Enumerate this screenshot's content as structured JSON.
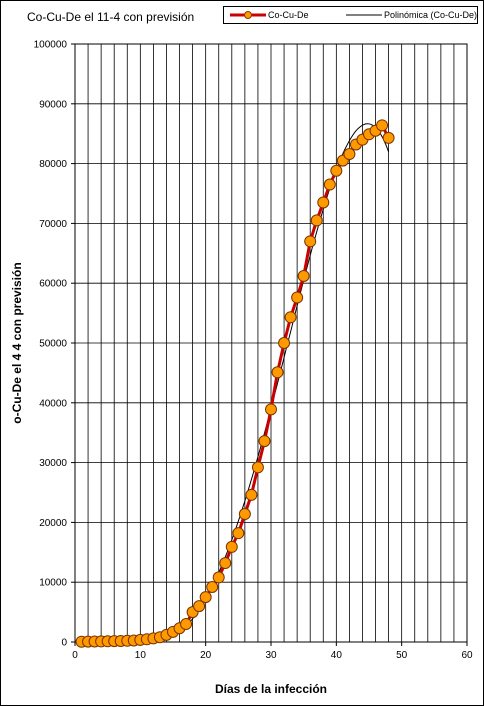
{
  "chart_data": {
    "type": "line",
    "title": "Co-Cu-De  el 11-4 con previsión",
    "xlabel": "Días de la infección",
    "ylabel": "o-Cu-De el 4 4 con previsión",
    "xlim": [
      0,
      60
    ],
    "ylim": [
      0,
      100000
    ],
    "x_ticks": [
      "0",
      "10",
      "20",
      "30",
      "40",
      "50",
      "60"
    ],
    "y_ticks": [
      "0",
      "10000",
      "20000",
      "30000",
      "40000",
      "50000",
      "60000",
      "70000",
      "80000",
      "90000",
      "100000"
    ],
    "grid": true,
    "legend_position": "top",
    "series": [
      {
        "name": "Co-Cu-De",
        "color": "#cc0000",
        "marker_fill": "#ff9900",
        "x": [
          1,
          2,
          3,
          4,
          5,
          6,
          7,
          8,
          9,
          10,
          11,
          12,
          13,
          14,
          15,
          16,
          17,
          18,
          19,
          20,
          21,
          22,
          23,
          24,
          25,
          26,
          27,
          28,
          29,
          30,
          31,
          32,
          33,
          34,
          35,
          36,
          37,
          38,
          39,
          40,
          41,
          42,
          43,
          44,
          45,
          46,
          47,
          48
        ],
        "y": [
          50,
          60,
          80,
          100,
          120,
          150,
          170,
          200,
          250,
          350,
          450,
          600,
          800,
          1200,
          1700,
          2300,
          3000,
          5000,
          6000,
          7500,
          9200,
          10800,
          13200,
          15900,
          18200,
          21400,
          24600,
          29200,
          33600,
          38900,
          45100,
          50000,
          54300,
          57600,
          61200,
          67000,
          70500,
          73500,
          76500,
          78800,
          80500,
          81600,
          83200,
          84000,
          84900,
          85500,
          86400,
          84300
        ]
      },
      {
        "name": "Polinómica (Co-Cu-De)",
        "color": "#000000"
      }
    ]
  }
}
